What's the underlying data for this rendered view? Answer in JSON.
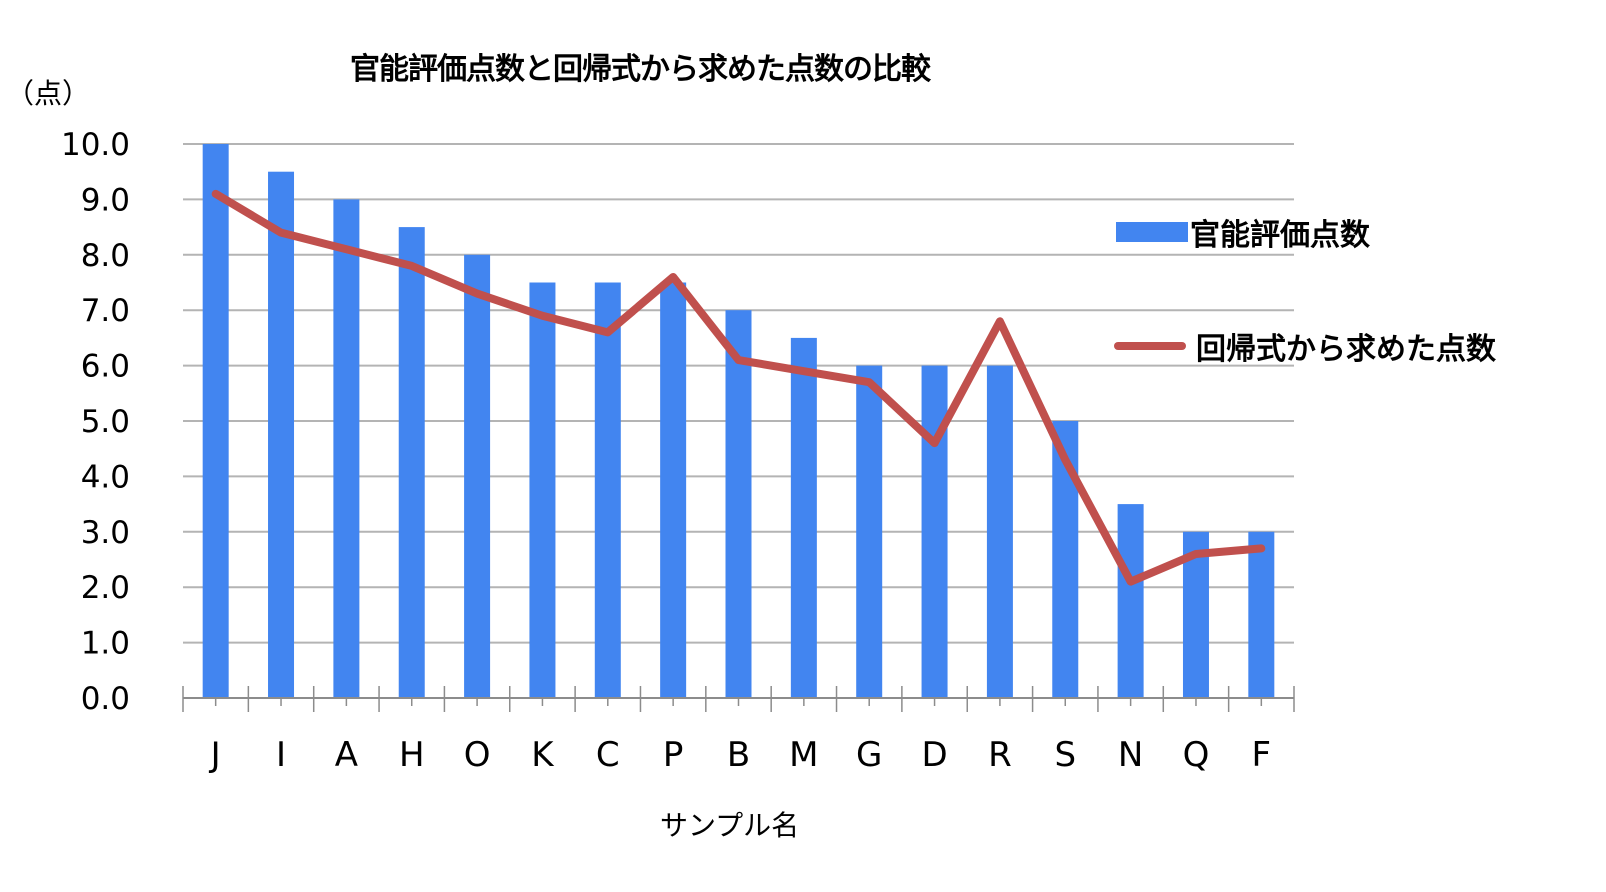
{
  "chart_data": {
    "type": "bar+line",
    "title": "官能評価点数と回帰式から求めた点数の比較",
    "xlabel": "サンプル名",
    "ylabel": "（点）",
    "ylim": [
      0,
      10
    ],
    "yticks": [
      "0.0",
      "1.0",
      "2.0",
      "3.0",
      "4.0",
      "5.0",
      "6.0",
      "7.0",
      "8.0",
      "9.0",
      "10.0"
    ],
    "grid": true,
    "legend_position": "right",
    "categories": [
      "J",
      "I",
      "A",
      "H",
      "O",
      "K",
      "C",
      "P",
      "B",
      "M",
      "G",
      "D",
      "R",
      "S",
      "N",
      "Q",
      "F"
    ],
    "series": [
      {
        "name": "官能評価点数",
        "type": "bar",
        "color": "#4285f0",
        "values": [
          10.0,
          9.5,
          9.0,
          8.5,
          8.0,
          7.5,
          7.5,
          7.5,
          7.0,
          6.5,
          6.0,
          6.0,
          6.0,
          5.0,
          3.5,
          3.0,
          3.0
        ]
      },
      {
        "name": "回帰式から求めた点数",
        "type": "line",
        "color": "#c0504d",
        "values": [
          9.1,
          8.4,
          8.1,
          7.8,
          7.3,
          6.9,
          6.6,
          7.6,
          6.1,
          5.9,
          5.7,
          4.6,
          6.8,
          4.3,
          2.1,
          2.6,
          2.7
        ]
      }
    ]
  },
  "legend": {
    "bar_label": "官能評価点数",
    "line_label": "回帰式から求めた点数"
  },
  "colors": {
    "bar": "#4285f0",
    "line": "#c0504d",
    "grid": "#b4b4b4",
    "axis": "#8c8c8c"
  }
}
